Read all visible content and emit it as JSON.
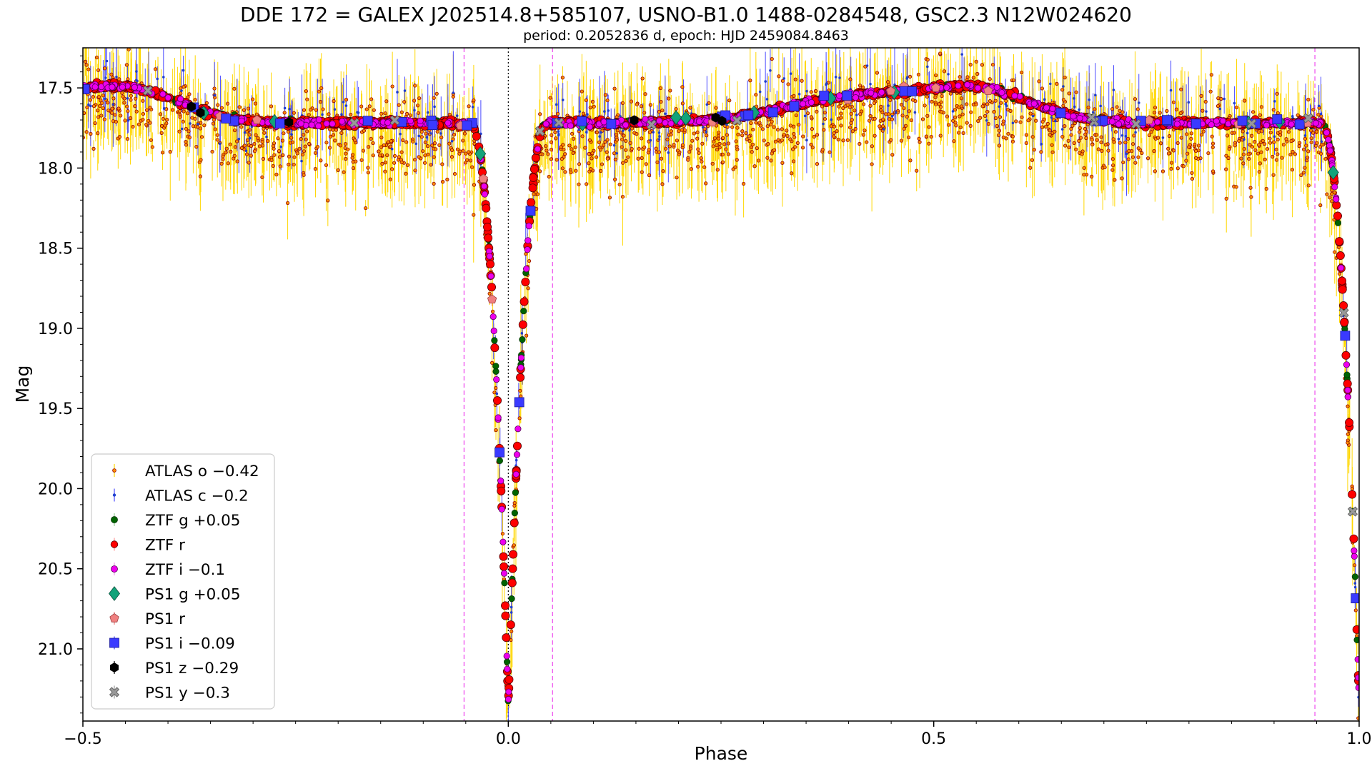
{
  "chart_data": {
    "type": "scatter",
    "title": "DDE 172 = GALEX J202514.8+585107, USNO-B1.0 1488-0284548, GSC2.3 N12W024620",
    "subtitle": "period: 0.2052836 d, epoch: HJD 2459084.8463",
    "xlabel": "Phase",
    "ylabel": "Mag",
    "xlim": [
      -0.5,
      1.0
    ],
    "ylim": [
      21.45,
      17.25
    ],
    "y_inverted": true,
    "xticks": [
      {
        "v": -0.5,
        "label": "−0.5"
      },
      {
        "v": 0.0,
        "label": "0.0"
      },
      {
        "v": 0.5,
        "label": "0.5"
      },
      {
        "v": 1.0,
        "label": "1.0"
      }
    ],
    "yticks": [
      {
        "v": 17.5,
        "label": "17.5"
      },
      {
        "v": 18.0,
        "label": "18.0"
      },
      {
        "v": 18.5,
        "label": "18.5"
      },
      {
        "v": 19.0,
        "label": "19.0"
      },
      {
        "v": 19.5,
        "label": "19.5"
      },
      {
        "v": 20.0,
        "label": "20.0"
      },
      {
        "v": 20.5,
        "label": "20.5"
      },
      {
        "v": 21.0,
        "label": "21.0"
      }
    ],
    "vlines": [
      {
        "x": 0.0,
        "color": "#000000",
        "style": "dotted"
      },
      {
        "x": -0.052,
        "color": "#ee44ee",
        "style": "dashed"
      },
      {
        "x": 0.052,
        "color": "#ee44ee",
        "style": "dashed"
      },
      {
        "x": 0.948,
        "color": "#ee44ee",
        "style": "dashed"
      }
    ],
    "legend_position": "lower-left",
    "light_curve": {
      "base_mag": 17.72,
      "primary_min_phase": 0.0,
      "primary_min_mag": 21.35,
      "hump_1": {
        "phase": 0.42,
        "mag": 17.55
      },
      "hump_2": {
        "phase": -0.44,
        "mag": 17.55
      }
    },
    "series": [
      {
        "name": "ATLAS o −0.42",
        "marker": "small-circle",
        "fill": "#ff8c00",
        "edge": "#8b0000",
        "errorbar": "#ffd700",
        "scatter_mag": 0.35
      },
      {
        "name": "ATLAS c −0.2",
        "marker": "dot",
        "fill": "#1f3fcf",
        "edge": "#1f3fcf",
        "errorbar": "#4b4bff",
        "scatter_mag": 0.3
      },
      {
        "name": "ZTF g +0.05",
        "marker": "circle",
        "fill": "#006400",
        "edge": "#003300",
        "errorbar": "#9acd9a",
        "scatter_mag": 0.03
      },
      {
        "name": "ZTF r",
        "marker": "circle",
        "fill": "#ff0000",
        "edge": "#550000",
        "errorbar": "#ff9999",
        "scatter_mag": 0.03
      },
      {
        "name": "ZTF i −0.1",
        "marker": "circle",
        "fill": "#ee00ee",
        "edge": "#550055",
        "errorbar": "#ee99ee",
        "scatter_mag": 0.03
      },
      {
        "name": "PS1 g +0.05",
        "marker": "diamond",
        "fill": "#12a37a",
        "edge": "#0b4d3a",
        "errorbar": "#12a37a",
        "scatter_mag": 0.04
      },
      {
        "name": "PS1 r",
        "marker": "pentagon",
        "fill": "#f08080",
        "edge": "#a04040",
        "errorbar": "#f08080",
        "scatter_mag": 0.05
      },
      {
        "name": "PS1 i −0.09",
        "marker": "square",
        "fill": "#3a3aff",
        "edge": "#1a1a9a",
        "errorbar": "#3a3aff",
        "scatter_mag": 0.04
      },
      {
        "name": "PS1 z −0.29",
        "marker": "hexagon",
        "fill": "#000000",
        "edge": "#000000",
        "errorbar": "#000000",
        "scatter_mag": 0.04
      },
      {
        "name": "PS1 y −0.3",
        "marker": "x-filled",
        "fill": "#999999",
        "edge": "#555555",
        "errorbar": "#999999",
        "scatter_mag": 0.05
      }
    ]
  }
}
